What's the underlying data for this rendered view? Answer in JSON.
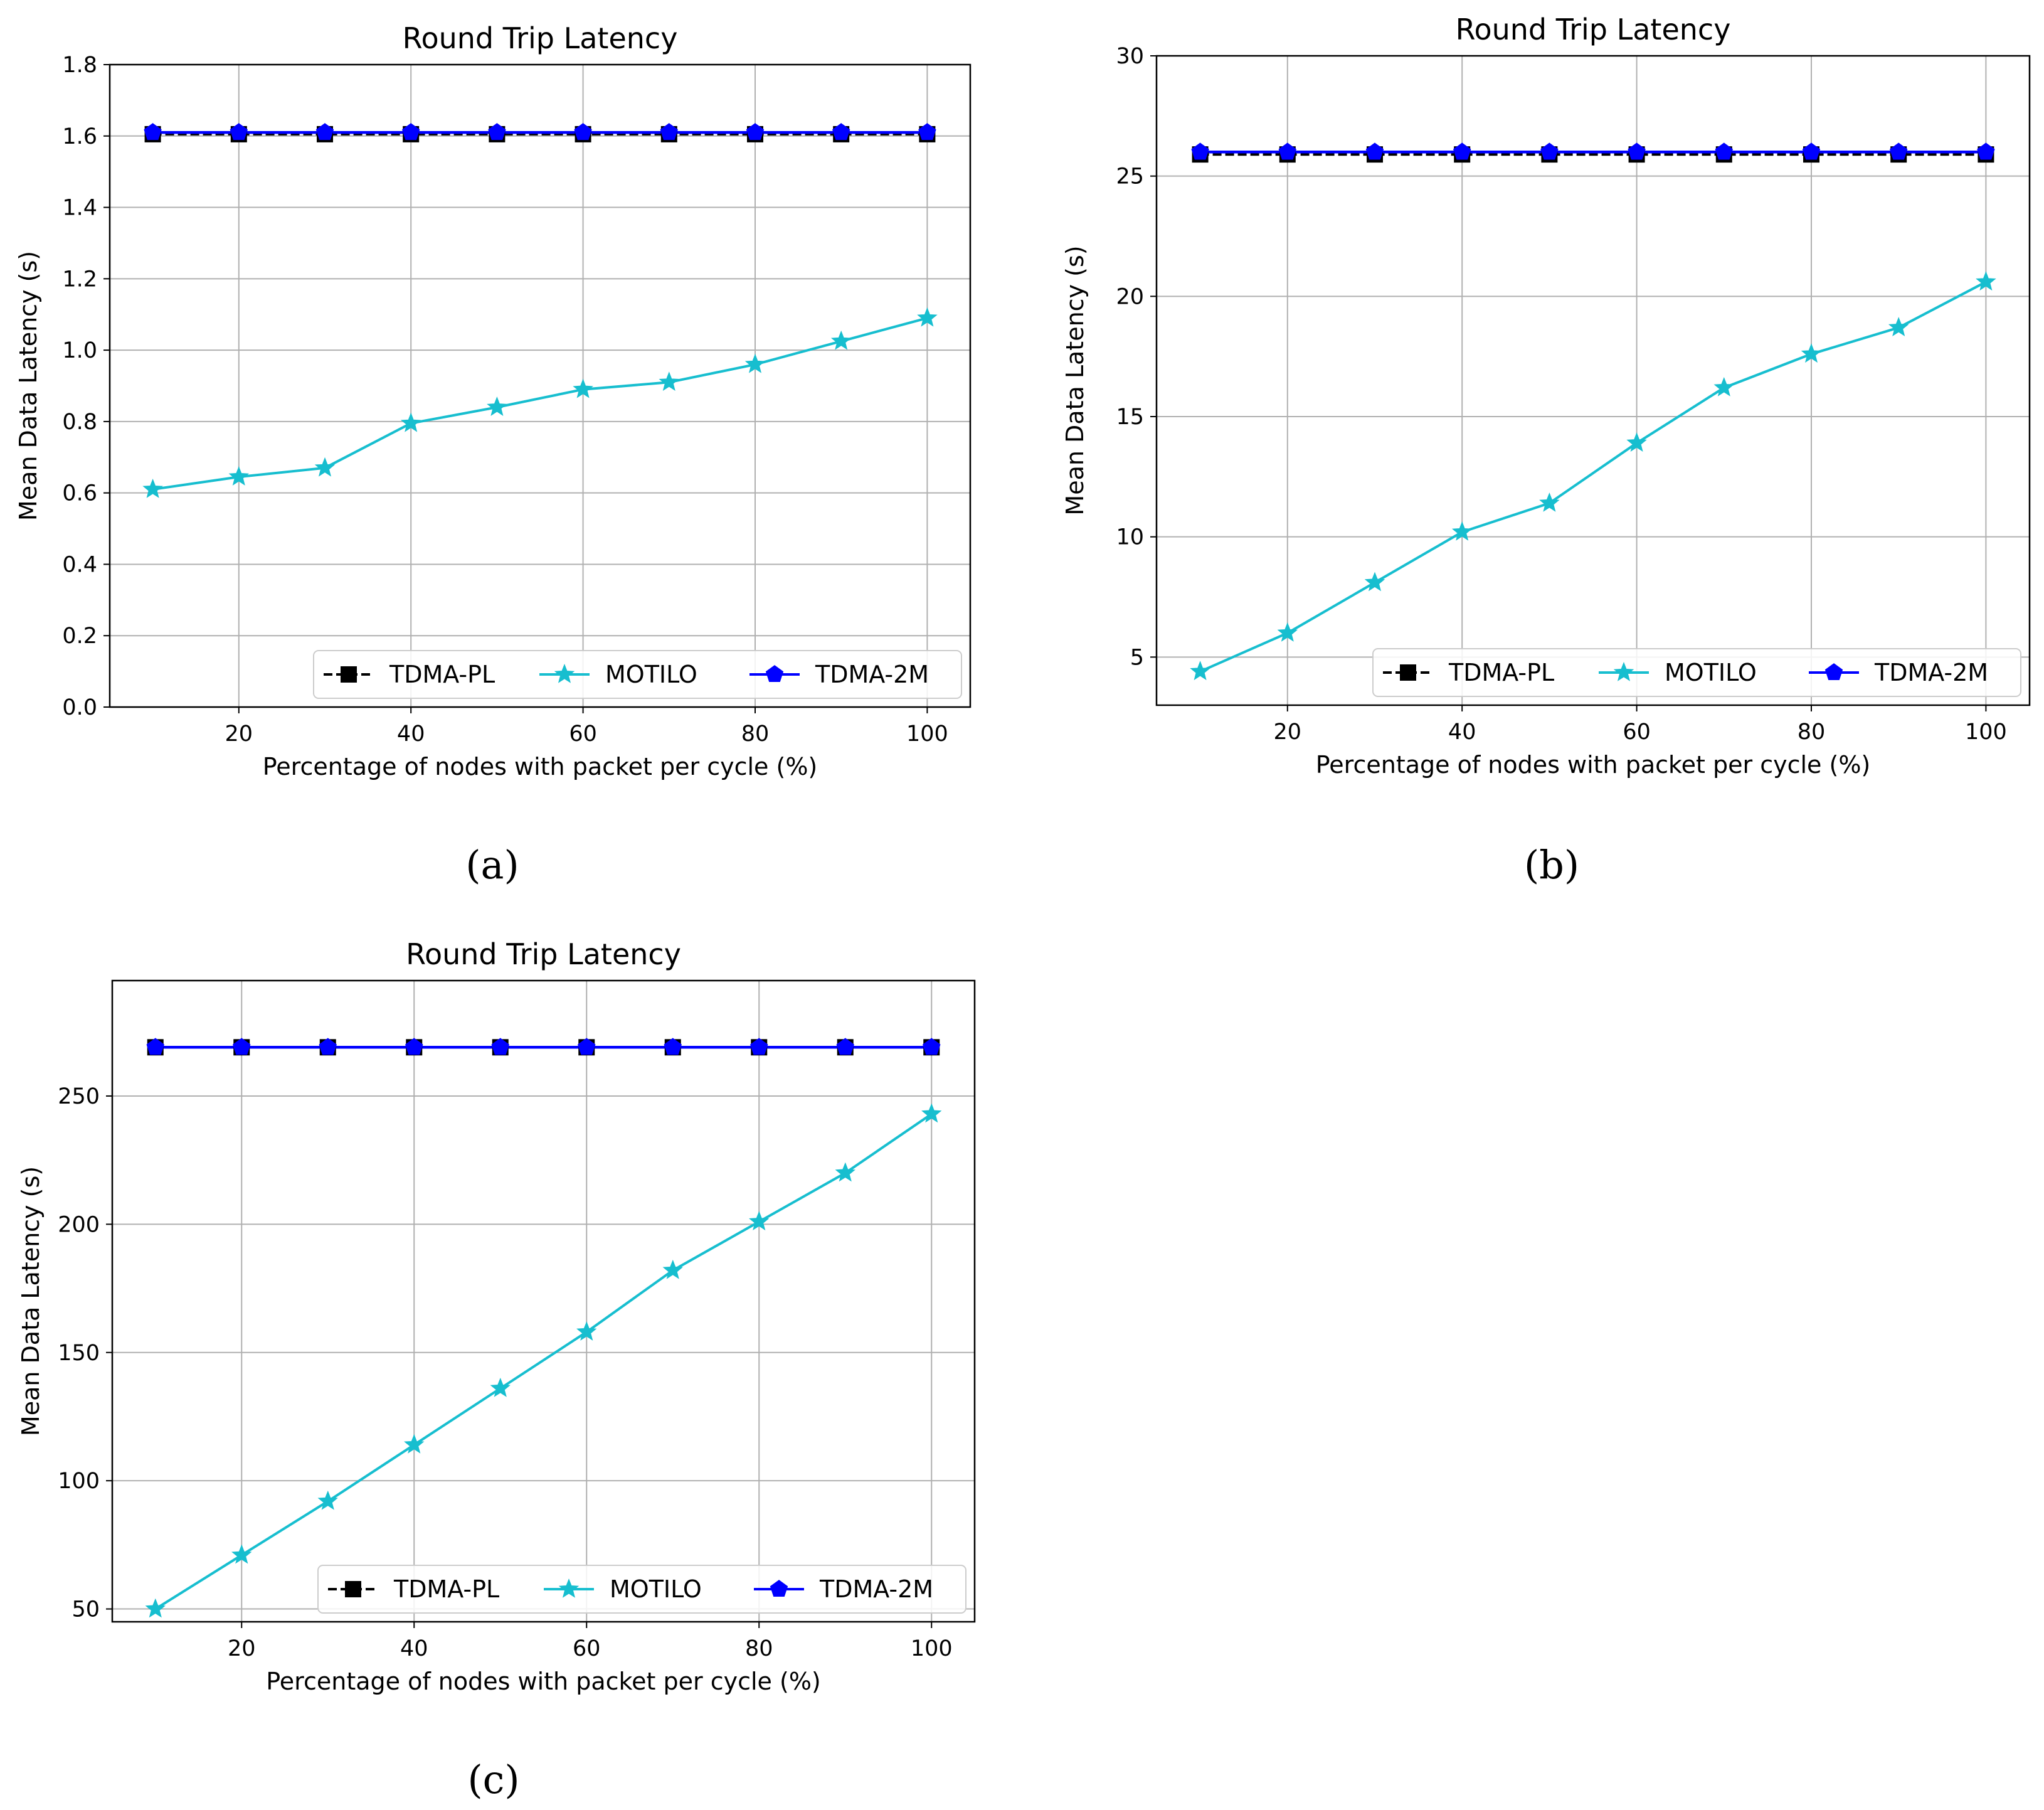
{
  "chart_data": [
    {
      "panel": "a",
      "caption": "(a)",
      "type": "line",
      "title": "Round Trip Latency",
      "xlabel": "Percentage of nodes with packet per cycle (%)",
      "ylabel": "Mean Data Latency (s)",
      "xlim": [
        5,
        105
      ],
      "ylim": [
        0,
        1.8
      ],
      "xticks": [
        20,
        40,
        60,
        80,
        100
      ],
      "yticks": [
        0.0,
        0.2,
        0.4,
        0.6,
        0.8,
        1.0,
        1.2,
        1.4,
        1.6,
        1.8
      ],
      "ytick_decimals": 1,
      "grid": true,
      "legend_position": "lower-right",
      "x": [
        10,
        20,
        30,
        40,
        50,
        60,
        70,
        80,
        90,
        100
      ],
      "series": [
        {
          "name": "TDMA-PL",
          "color": "#000000",
          "linestyle": "dashed",
          "marker": "square",
          "values": [
            1.605,
            1.605,
            1.605,
            1.605,
            1.605,
            1.605,
            1.605,
            1.605,
            1.605,
            1.605
          ]
        },
        {
          "name": "MOTILO",
          "color": "#17becf",
          "linestyle": "solid",
          "marker": "star",
          "values": [
            0.61,
            0.645,
            0.67,
            0.795,
            0.84,
            0.89,
            0.91,
            0.96,
            1.025,
            1.09
          ]
        },
        {
          "name": "TDMA-2M",
          "color": "#0000ff",
          "linestyle": "solid",
          "marker": "pentagon",
          "values": [
            1.61,
            1.61,
            1.61,
            1.61,
            1.61,
            1.61,
            1.61,
            1.61,
            1.61,
            1.61
          ]
        }
      ]
    },
    {
      "panel": "b",
      "caption": "(b)",
      "type": "line",
      "title": "Round Trip Latency",
      "xlabel": "Percentage of nodes with packet per cycle (%)",
      "ylabel": "Mean Data Latency (s)",
      "xlim": [
        5,
        105
      ],
      "ylim": [
        3,
        30
      ],
      "xticks": [
        20,
        40,
        60,
        80,
        100
      ],
      "yticks": [
        5,
        10,
        15,
        20,
        25,
        30
      ],
      "ytick_decimals": 0,
      "grid": true,
      "legend_position": "lower-right",
      "x": [
        10,
        20,
        30,
        40,
        50,
        60,
        70,
        80,
        90,
        100
      ],
      "series": [
        {
          "name": "TDMA-PL",
          "color": "#000000",
          "linestyle": "dashed",
          "marker": "square",
          "values": [
            25.9,
            25.9,
            25.9,
            25.9,
            25.9,
            25.9,
            25.9,
            25.9,
            25.9,
            25.9
          ]
        },
        {
          "name": "MOTILO",
          "color": "#17becf",
          "linestyle": "solid",
          "marker": "star",
          "values": [
            4.4,
            6.0,
            8.1,
            10.2,
            11.4,
            13.9,
            16.2,
            17.6,
            18.7,
            20.6
          ]
        },
        {
          "name": "TDMA-2M",
          "color": "#0000ff",
          "linestyle": "solid",
          "marker": "pentagon",
          "values": [
            26.0,
            26.0,
            26.0,
            26.0,
            26.0,
            26.0,
            26.0,
            26.0,
            26.0,
            26.0
          ]
        }
      ]
    },
    {
      "panel": "c",
      "caption": "(c)",
      "type": "line",
      "title": "Round Trip Latency",
      "xlabel": "Percentage of nodes with packet per cycle (%)",
      "ylabel": "Mean Data Latency (s)",
      "xlim": [
        5,
        105
      ],
      "ylim": [
        45,
        295
      ],
      "xticks": [
        20,
        40,
        60,
        80,
        100
      ],
      "yticks": [
        50,
        100,
        150,
        200,
        250
      ],
      "ytick_decimals": 0,
      "grid": true,
      "legend_position": "lower-right",
      "x": [
        10,
        20,
        30,
        40,
        50,
        60,
        70,
        80,
        90,
        100
      ],
      "series": [
        {
          "name": "TDMA-PL",
          "color": "#000000",
          "linestyle": "dashed",
          "marker": "square",
          "values": [
            269,
            269,
            269,
            269,
            269,
            269,
            269,
            269,
            269,
            269
          ]
        },
        {
          "name": "MOTILO",
          "color": "#17becf",
          "linestyle": "solid",
          "marker": "star",
          "values": [
            50,
            71,
            92,
            114,
            136,
            158,
            182,
            201,
            220,
            243
          ]
        },
        {
          "name": "TDMA-2M",
          "color": "#0000ff",
          "linestyle": "solid",
          "marker": "pentagon",
          "values": [
            269,
            269,
            269,
            269,
            269,
            269,
            269,
            269,
            269,
            269
          ]
        }
      ]
    }
  ]
}
